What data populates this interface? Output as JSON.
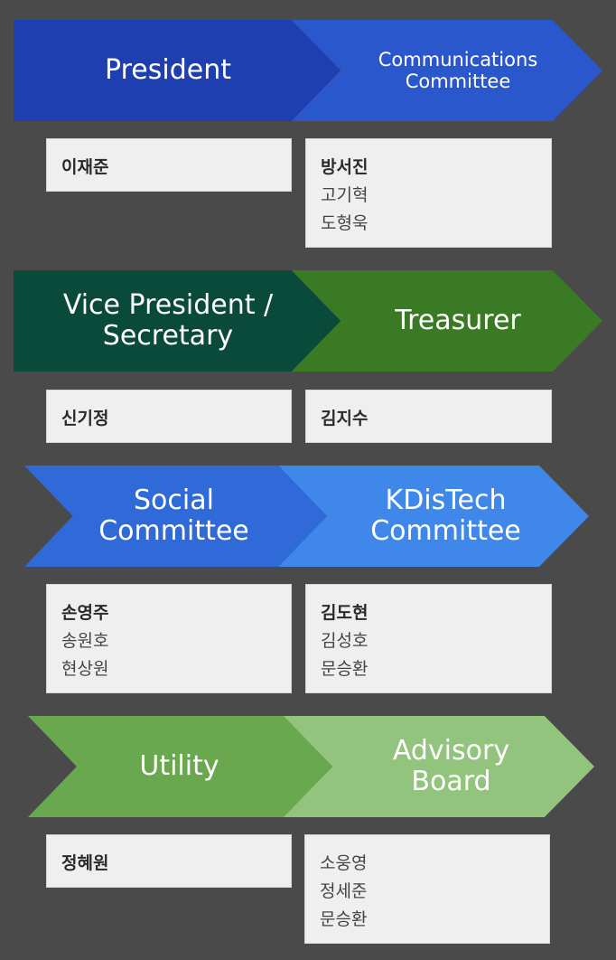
{
  "colors": {
    "background": "#4a4a4a",
    "president": "#1e3fb0",
    "communications": "#2b57cc",
    "vice_president": "#0a4a3a",
    "treasurer": "#3a7a25",
    "social": "#2f6ad8",
    "kdistech": "#3f88ea",
    "utility": "#6aa84f",
    "advisory": "#93c47d"
  },
  "roles": [
    {
      "id": "president",
      "title": "President",
      "lead": "이재준",
      "members": []
    },
    {
      "id": "communications",
      "title": "Communications\nCommittee",
      "lead": "방서진",
      "members": [
        "고기혁",
        "도형욱"
      ]
    },
    {
      "id": "vice_president",
      "title": "Vice President /\nSecretary",
      "lead": "신기정",
      "members": []
    },
    {
      "id": "treasurer",
      "title": "Treasurer",
      "lead": "김지수",
      "members": []
    },
    {
      "id": "social",
      "title": "Social\nCommittee",
      "lead": "손영주",
      "members": [
        "송원호",
        "현상원"
      ]
    },
    {
      "id": "kdistech",
      "title": "KDisTech\nCommittee",
      "lead": "김도현",
      "members": [
        "김성호",
        "문승환"
      ]
    },
    {
      "id": "utility",
      "title": "Utility",
      "lead": "정혜원",
      "members": []
    },
    {
      "id": "advisory",
      "title": "Advisory\nBoard",
      "lead": "",
      "members": [
        "소웅영",
        "정세준",
        "문승환"
      ]
    }
  ]
}
